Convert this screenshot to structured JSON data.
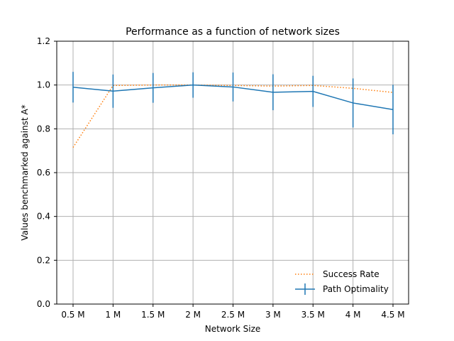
{
  "chart_data": {
    "type": "line",
    "title": "Performance as a function of network sizes",
    "xlabel": "Network Size",
    "ylabel": "Values benchmarked against A*",
    "categories": [
      "0.5 M",
      "1 M",
      "1.5 M",
      "2 M",
      "2.5 M",
      "3 M",
      "3.5 M",
      "4 M",
      "4.5 M"
    ],
    "ylim": [
      0,
      1.2
    ],
    "yticks": [
      "0.0",
      "0.2",
      "0.4",
      "0.6",
      "0.8",
      "1.0",
      "1.2"
    ],
    "grid": true,
    "legend_position": "lower-right",
    "series": [
      {
        "name": "Success Rate",
        "style": "dotted",
        "color": "#ff7f0e",
        "values": [
          0.715,
          0.998,
          1.0,
          1.0,
          0.998,
          0.995,
          0.998,
          0.985,
          0.966
        ]
      },
      {
        "name": "Path Optimality",
        "style": "solid-errorbar",
        "color": "#1f77b4",
        "values": [
          0.99,
          0.972,
          0.987,
          1.0,
          0.991,
          0.967,
          0.971,
          0.918,
          0.888
        ],
        "error": [
          0.07,
          0.076,
          0.068,
          0.058,
          0.066,
          0.082,
          0.071,
          0.112,
          0.113
        ]
      }
    ]
  }
}
